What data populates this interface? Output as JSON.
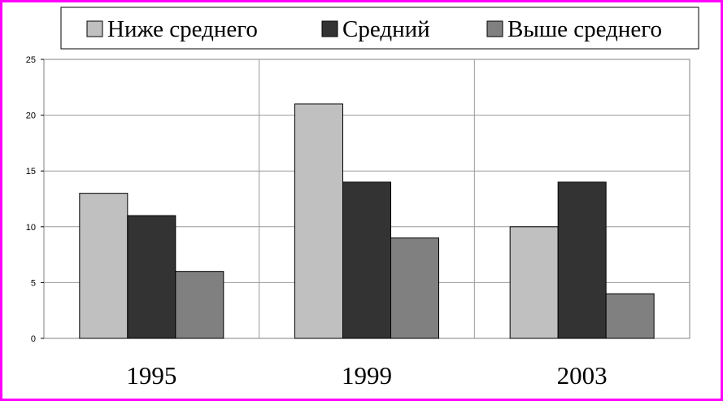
{
  "chart_data": {
    "type": "bar",
    "categories": [
      "1995",
      "1999",
      "2003"
    ],
    "series": [
      {
        "name": "Ниже среднего",
        "values": [
          13,
          21,
          10
        ],
        "color": "#c0c0c0"
      },
      {
        "name": "Средний",
        "values": [
          11,
          14,
          14
        ],
        "color": "#333333"
      },
      {
        "name": "Выше среднего",
        "values": [
          6,
          9,
          4
        ],
        "color": "#808080"
      }
    ],
    "yticks": [
      "0",
      "5",
      "10",
      "15",
      "20",
      "25"
    ],
    "ylim": [
      0,
      25
    ],
    "grid": true,
    "legend_position": "top",
    "title": "",
    "xlabel": "",
    "ylabel": ""
  },
  "colors": {
    "border": "#ff00ff",
    "grid": "#999999"
  }
}
